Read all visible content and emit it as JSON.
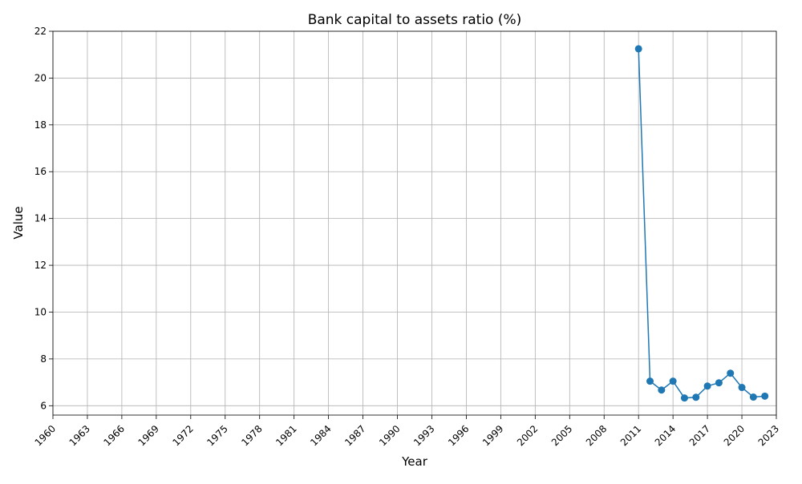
{
  "chart_data": {
    "type": "line",
    "title": "Bank capital to assets ratio (%)",
    "xlabel": "Year",
    "ylabel": "Value",
    "xlim": [
      1960,
      2023
    ],
    "ylim": [
      5.6,
      22
    ],
    "x_ticks": [
      1960,
      1963,
      1966,
      1969,
      1972,
      1975,
      1978,
      1981,
      1984,
      1987,
      1990,
      1993,
      1996,
      1999,
      2002,
      2005,
      2008,
      2011,
      2014,
      2017,
      2020,
      2023
    ],
    "y_ticks": [
      6,
      8,
      10,
      12,
      14,
      16,
      18,
      20,
      22
    ],
    "grid": true,
    "series": [
      {
        "name": "Bank capital to assets ratio (%)",
        "color": "#1f77b4",
        "marker": "circle",
        "x": [
          2011,
          2012,
          2013,
          2014,
          2015,
          2016,
          2017,
          2018,
          2019,
          2020,
          2021,
          2022
        ],
        "values": [
          21.25,
          7.05,
          6.67,
          7.05,
          6.33,
          6.36,
          6.84,
          6.98,
          7.39,
          6.78,
          6.37,
          6.41
        ]
      }
    ]
  }
}
